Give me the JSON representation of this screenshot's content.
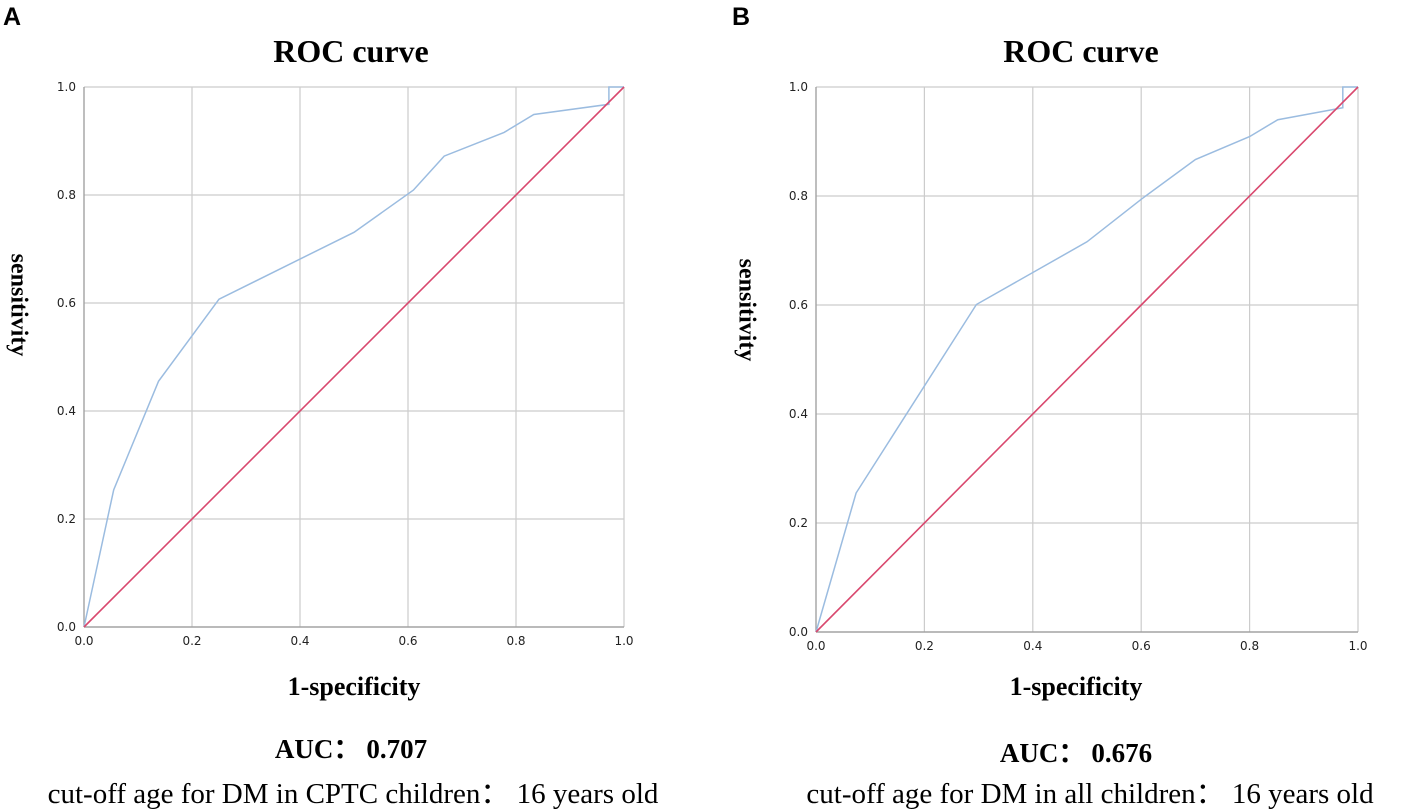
{
  "panels": [
    {
      "letter": "A",
      "auc_label": "AUC：",
      "auc_value": "0.707",
      "caption": "cut-off age for DM in CPTC children： 16 years old"
    },
    {
      "letter": "B",
      "auc_label": "AUC：",
      "auc_value": "0.676",
      "caption": "cut-off age for DM in all children： 16 years old"
    }
  ],
  "chart_data": [
    {
      "type": "line",
      "title": "ROC curve",
      "xlabel": "1-specificity",
      "ylabel": "sensitivity",
      "xlim": [
        0,
        1
      ],
      "ylim": [
        0,
        1
      ],
      "grid": true,
      "x_ticks": [
        0.0,
        0.2,
        0.4,
        0.6,
        0.8,
        1.0
      ],
      "y_ticks": [
        0.0,
        0.2,
        0.4,
        0.6,
        0.8,
        1.0
      ],
      "tick_labels": [
        "0.0",
        "0.2",
        "0.4",
        "0.6",
        "0.8",
        "1.0"
      ],
      "colors": {
        "roc": "#9bbce0",
        "reference": "#d9486e",
        "grid": "#cccccc",
        "axis": "#999999"
      },
      "series": [
        {
          "name": "ROC",
          "x": [
            0.0,
            0.055,
            0.138,
            0.25,
            0.5,
            0.61,
            0.667,
            0.778,
            0.833,
            0.972,
            0.972,
            1.0,
            1.0
          ],
          "y": [
            0.0,
            0.254,
            0.455,
            0.607,
            0.731,
            0.809,
            0.872,
            0.916,
            0.949,
            0.968,
            1.0,
            1.0,
            1.0
          ]
        },
        {
          "name": "Reference line",
          "x": [
            0.0,
            1.0
          ],
          "y": [
            0.0,
            1.0
          ]
        }
      ]
    },
    {
      "type": "line",
      "title": "ROC curve",
      "xlabel": "1-specificity",
      "ylabel": "sensitivity",
      "xlim": [
        0,
        1
      ],
      "ylim": [
        0,
        1
      ],
      "grid": true,
      "x_ticks": [
        0.0,
        0.2,
        0.4,
        0.6,
        0.8,
        1.0
      ],
      "y_ticks": [
        0.0,
        0.2,
        0.4,
        0.6,
        0.8,
        1.0
      ],
      "tick_labels": [
        "0.0",
        "0.2",
        "0.4",
        "0.6",
        "0.8",
        "1.0"
      ],
      "colors": {
        "roc": "#9bbce0",
        "reference": "#d9486e",
        "grid": "#cccccc",
        "axis": "#999999"
      },
      "series": [
        {
          "name": "ROC",
          "x": [
            0.0,
            0.074,
            0.296,
            0.5,
            0.6,
            0.7,
            0.8,
            0.852,
            0.972,
            0.972,
            1.0,
            1.0
          ],
          "y": [
            0.0,
            0.255,
            0.601,
            0.716,
            0.794,
            0.867,
            0.909,
            0.94,
            0.962,
            1.0,
            1.0,
            1.0
          ]
        },
        {
          "name": "Reference line",
          "x": [
            0.0,
            1.0
          ],
          "y": [
            0.0,
            1.0
          ]
        }
      ]
    }
  ]
}
